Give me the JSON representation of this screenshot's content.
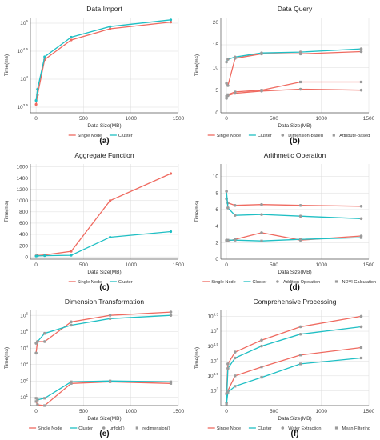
{
  "colors": {
    "single": "#ef6a60",
    "cluster": "#1fbfc4",
    "marker": "#9b9b9b",
    "grid": "#dcdcdc",
    "axis": "#555555"
  },
  "chart_data": [
    {
      "id": "a",
      "caption": "(a)",
      "type": "line",
      "title": "Data Import",
      "xlabel": "Data Size(MB)",
      "ylabel": "Time(ms)",
      "xlim": [
        -60,
        1500
      ],
      "xticks": [
        "0",
        "500",
        "1000",
        "1500"
      ],
      "yscale": "log",
      "ylim": [
        3.4,
        5.1
      ],
      "yticks": [
        {
          "v": 3.5,
          "t": "10^3.5"
        },
        {
          "v": 4,
          "t": "10^4"
        },
        {
          "v": 4.5,
          "t": "10^4.5"
        },
        {
          "v": 5,
          "t": "10^5"
        }
      ],
      "legend": [
        "Single Node",
        "Cluster"
      ],
      "series": [
        {
          "name": "Single Node",
          "color": "single",
          "marker": "fill",
          "x": [
            0,
            15,
            90,
            370,
            780,
            1420
          ],
          "y": [
            3.55,
            3.72,
            4.35,
            4.7,
            4.9,
            5.02
          ]
        },
        {
          "name": "Cluster",
          "color": "cluster",
          "marker": "fill",
          "x": [
            0,
            15,
            90,
            370,
            780,
            1420
          ],
          "y": [
            3.62,
            3.82,
            4.4,
            4.75,
            4.94,
            5.06
          ]
        }
      ]
    },
    {
      "id": "b",
      "caption": "(b)",
      "type": "line",
      "title": "Data Query",
      "xlabel": "Data Size(MB)",
      "ylabel": "Time(ms)",
      "xlim": [
        -60,
        1500
      ],
      "xticks": [
        "0",
        "500",
        "1000",
        "1500"
      ],
      "yscale": "linear",
      "ylim": [
        0,
        21
      ],
      "yticks": [
        {
          "v": 0,
          "t": "0"
        },
        {
          "v": 5,
          "t": "5"
        },
        {
          "v": 10,
          "t": "10"
        },
        {
          "v": 15,
          "t": "15"
        },
        {
          "v": 20,
          "t": "20"
        }
      ],
      "legend": [
        "Single Node",
        "Cluster",
        "Dimension-based",
        "Attribute-based"
      ],
      "series": [
        {
          "name": "Single Node",
          "color": "single",
          "marker": "round",
          "x": [
            0,
            15,
            90,
            370,
            780,
            1420
          ],
          "y": [
            6.5,
            6.0,
            12.0,
            13.0,
            13.0,
            13.5
          ]
        },
        {
          "name": "Single Node",
          "color": "single",
          "marker": "round",
          "x": [
            0,
            15,
            90,
            370,
            780,
            1420
          ],
          "y": [
            3.2,
            3.8,
            4.3,
            4.8,
            5.2,
            5.0
          ]
        },
        {
          "name": "Cluster",
          "color": "cluster",
          "marker": "round",
          "x": [
            0,
            15,
            90,
            370,
            780,
            1420
          ],
          "y": [
            11.2,
            11.8,
            12.3,
            13.2,
            13.4,
            14.1
          ]
        },
        {
          "name": "Cluster",
          "color": "single",
          "marker": "square",
          "x": [
            0,
            15,
            90,
            370,
            780,
            1420
          ],
          "y": [
            3.6,
            4.0,
            4.6,
            5.0,
            6.8,
            6.8
          ]
        }
      ]
    },
    {
      "id": "c",
      "caption": "(c)",
      "type": "line",
      "title": "Aggregate Function",
      "xlabel": "Data Size(MB)",
      "ylabel": "Time(ms)",
      "xlim": [
        -60,
        1500
      ],
      "xticks": [
        "0",
        "500",
        "1000",
        "1500"
      ],
      "yscale": "linear",
      "ylim": [
        -40,
        1650
      ],
      "yticks": [
        {
          "v": 0,
          "t": "0"
        },
        {
          "v": 200,
          "t": "200"
        },
        {
          "v": 400,
          "t": "400"
        },
        {
          "v": 600,
          "t": "600"
        },
        {
          "v": 800,
          "t": "800"
        },
        {
          "v": 1000,
          "t": "1000"
        },
        {
          "v": 1200,
          "t": "1200"
        },
        {
          "v": 1400,
          "t": "1400"
        },
        {
          "v": 1600,
          "t": "1600"
        }
      ],
      "legend": [
        "Single Node",
        "Cluster"
      ],
      "series": [
        {
          "name": "Single Node",
          "color": "single",
          "marker": "fill",
          "x": [
            0,
            15,
            90,
            370,
            780,
            1420
          ],
          "y": [
            20,
            25,
            35,
            100,
            1000,
            1480
          ]
        },
        {
          "name": "Cluster",
          "color": "cluster",
          "marker": "fill",
          "x": [
            0,
            15,
            90,
            370,
            780,
            1420
          ],
          "y": [
            15,
            18,
            22,
            30,
            350,
            450
          ]
        }
      ]
    },
    {
      "id": "d",
      "caption": "(d)",
      "type": "line",
      "title": "Arithmetic Operation",
      "xlabel": "Data Size(MB)",
      "ylabel": "Time(ms)",
      "xlim": [
        -60,
        1500
      ],
      "xticks": [
        "0",
        "500",
        "1000",
        "1500"
      ],
      "yscale": "linear",
      "ylim": [
        0,
        11.5
      ],
      "yticks": [
        {
          "v": 0,
          "t": "0"
        },
        {
          "v": 2,
          "t": "2"
        },
        {
          "v": 4,
          "t": "4"
        },
        {
          "v": 6,
          "t": "6"
        },
        {
          "v": 8,
          "t": "8"
        },
        {
          "v": 10,
          "t": "10"
        }
      ],
      "legend": [
        "Single Node",
        "Cluster",
        "Addition Operation",
        "NDVI Calculation"
      ],
      "series": [
        {
          "name": "Single Node",
          "color": "single",
          "marker": "round",
          "x": [
            0,
            15,
            90,
            370,
            780,
            1420
          ],
          "y": [
            7.3,
            6.8,
            6.5,
            6.6,
            6.5,
            6.4
          ]
        },
        {
          "name": "Single Node",
          "color": "single",
          "marker": "round",
          "x": [
            0,
            15,
            90,
            370,
            780,
            1420
          ],
          "y": [
            2.3,
            2.2,
            2.4,
            3.2,
            2.3,
            2.8
          ]
        },
        {
          "name": "Cluster",
          "color": "cluster",
          "marker": "round",
          "x": [
            0,
            15,
            90,
            370,
            780,
            1420
          ],
          "y": [
            8.2,
            6.2,
            5.3,
            5.4,
            5.2,
            4.9
          ]
        },
        {
          "name": "Cluster",
          "color": "cluster",
          "marker": "square",
          "x": [
            0,
            15,
            90,
            370,
            780,
            1420
          ],
          "y": [
            2.2,
            2.3,
            2.3,
            2.2,
            2.4,
            2.6
          ]
        }
      ]
    },
    {
      "id": "e",
      "caption": "(e)",
      "type": "line",
      "title": "Dimension Transformation",
      "xlabel": "Data Size(MB)",
      "ylabel": "Time(ms)",
      "xlim": [
        -60,
        1500
      ],
      "xticks": [
        "0",
        "500",
        "1000",
        "1500"
      ],
      "yscale": "log",
      "ylim": [
        0.5,
        6.3
      ],
      "yticks": [
        {
          "v": 1,
          "t": "10^1"
        },
        {
          "v": 2,
          "t": "10^2"
        },
        {
          "v": 3,
          "t": "10^3"
        },
        {
          "v": 4,
          "t": "10^4"
        },
        {
          "v": 5,
          "t": "10^5"
        },
        {
          "v": 6,
          "t": "10^6"
        }
      ],
      "legend": [
        "Single Node",
        "Cluster",
        "unfold()",
        "redimension()"
      ],
      "series": [
        {
          "name": "Single Node",
          "color": "single",
          "marker": "round",
          "x": [
            0,
            15,
            90,
            370,
            780,
            1420
          ],
          "y": [
            3.7,
            4.4,
            4.4,
            5.6,
            6.0,
            6.2
          ]
        },
        {
          "name": "Cluster",
          "color": "cluster",
          "marker": "round",
          "x": [
            0,
            15,
            90,
            370,
            780,
            1420
          ],
          "y": [
            4.3,
            4.4,
            4.9,
            5.4,
            5.8,
            6.0
          ]
        },
        {
          "name": "Single Node",
          "color": "single",
          "marker": "square",
          "x": [
            0,
            15,
            90,
            370,
            780,
            1420
          ],
          "y": [
            0.75,
            0.55,
            0.5,
            1.85,
            1.95,
            1.85
          ]
        },
        {
          "name": "Cluster",
          "color": "cluster",
          "marker": "square",
          "x": [
            0,
            15,
            90,
            370,
            780,
            1420
          ],
          "y": [
            0.95,
            0.85,
            0.95,
            1.95,
            2.0,
            1.95
          ]
        }
      ]
    },
    {
      "id": "f",
      "caption": "(f)",
      "type": "line",
      "title": "Comprehensive Processing",
      "xlabel": "Data Size(MB)",
      "ylabel": "Time(ms)",
      "xlim": [
        -60,
        1500
      ],
      "xticks": [
        "0",
        "500",
        "1000",
        "1500"
      ],
      "yscale": "log",
      "ylim": [
        2.5,
        5.7
      ],
      "yticks": [
        {
          "v": 3,
          "t": "10^3"
        },
        {
          "v": 3.5,
          "t": "10^3.5"
        },
        {
          "v": 4,
          "t": "10^4"
        },
        {
          "v": 4.5,
          "t": "10^4.5"
        },
        {
          "v": 5,
          "t": "10^5"
        },
        {
          "v": 5.5,
          "t": "10^5.5"
        }
      ],
      "legend": [
        "Single Node",
        "Cluster",
        "Water Extraction",
        "Mean Filtering"
      ],
      "series": [
        {
          "name": "Single Node",
          "color": "single",
          "marker": "round",
          "x": [
            0,
            15,
            90,
            370,
            780,
            1420
          ],
          "y": [
            2.9,
            3.9,
            4.3,
            4.7,
            5.15,
            5.5
          ]
        },
        {
          "name": "Cluster",
          "color": "cluster",
          "marker": "round",
          "x": [
            0,
            15,
            90,
            370,
            780,
            1420
          ],
          "y": [
            2.6,
            3.75,
            4.1,
            4.5,
            4.9,
            5.15
          ]
        },
        {
          "name": "Single Node",
          "color": "single",
          "marker": "square",
          "x": [
            0,
            15,
            90,
            370,
            780,
            1420
          ],
          "y": [
            2.9,
            3.0,
            3.5,
            3.8,
            4.2,
            4.45
          ]
        },
        {
          "name": "Cluster",
          "color": "cluster",
          "marker": "square",
          "x": [
            0,
            15,
            90,
            370,
            780,
            1420
          ],
          "y": [
            2.55,
            2.95,
            3.15,
            3.45,
            3.9,
            4.1
          ]
        }
      ]
    }
  ]
}
